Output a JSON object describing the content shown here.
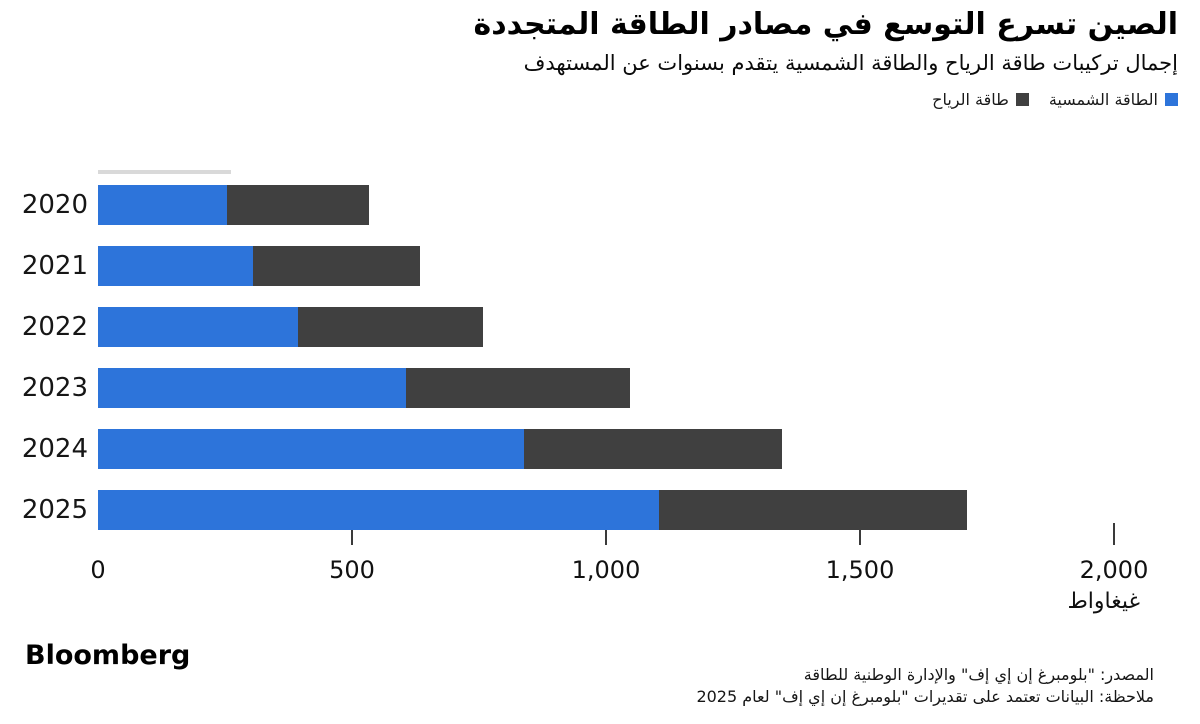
{
  "header": {
    "title": "الصين تسرع التوسع في مصادر الطاقة المتجددة",
    "subtitle": "إجمال تركيبات طاقة الرياح والطاقة الشمسية يتقدم بسنوات عن المستهدف"
  },
  "legend": [
    {
      "label": "الطاقة الشمسية",
      "color": "#2d74da"
    },
    {
      "label": "طاقة الرياح",
      "color": "#404040"
    }
  ],
  "chart_data": {
    "type": "bar",
    "orientation": "horizontal",
    "stacked": true,
    "title": "الصين تسرع التوسع في مصادر الطاقة المتجددة",
    "subtitle": "إجمال تركيبات طاقة الرياح والطاقة الشمسية يتقدم بسنوات عن المستهدف",
    "categories": [
      "2020",
      "2021",
      "2022",
      "2023",
      "2024",
      "2025"
    ],
    "series": [
      {
        "name": "الطاقة الشمسية",
        "color": "#2d74da",
        "values": [
          253,
          306,
          393,
          607,
          838,
          1105
        ]
      },
      {
        "name": "طاقة الرياح",
        "color": "#404040",
        "values": [
          281,
          328,
          365,
          440,
          508,
          605
        ]
      }
    ],
    "totals": [
      534,
      634,
      758,
      1047,
      1346,
      1710
    ],
    "xlim": [
      0,
      2000
    ],
    "x_ticks": [
      0,
      500,
      1000,
      1500,
      2000
    ],
    "x_tick_labels": [
      "0",
      "500",
      "1,000",
      "1,500",
      "2,000"
    ],
    "unit_label": "غيغاواط",
    "grid": false,
    "legend_position": "top-right"
  },
  "footer": {
    "logo": "Bloomberg",
    "source": "المصدر: \"بلومبرغ إن إي إف\" والإدارة الوطنية للطاقة",
    "note": "ملاحظة: البيانات تعتمد على تقديرات \"بلومبرغ إن إي إف\" لعام 2025"
  }
}
